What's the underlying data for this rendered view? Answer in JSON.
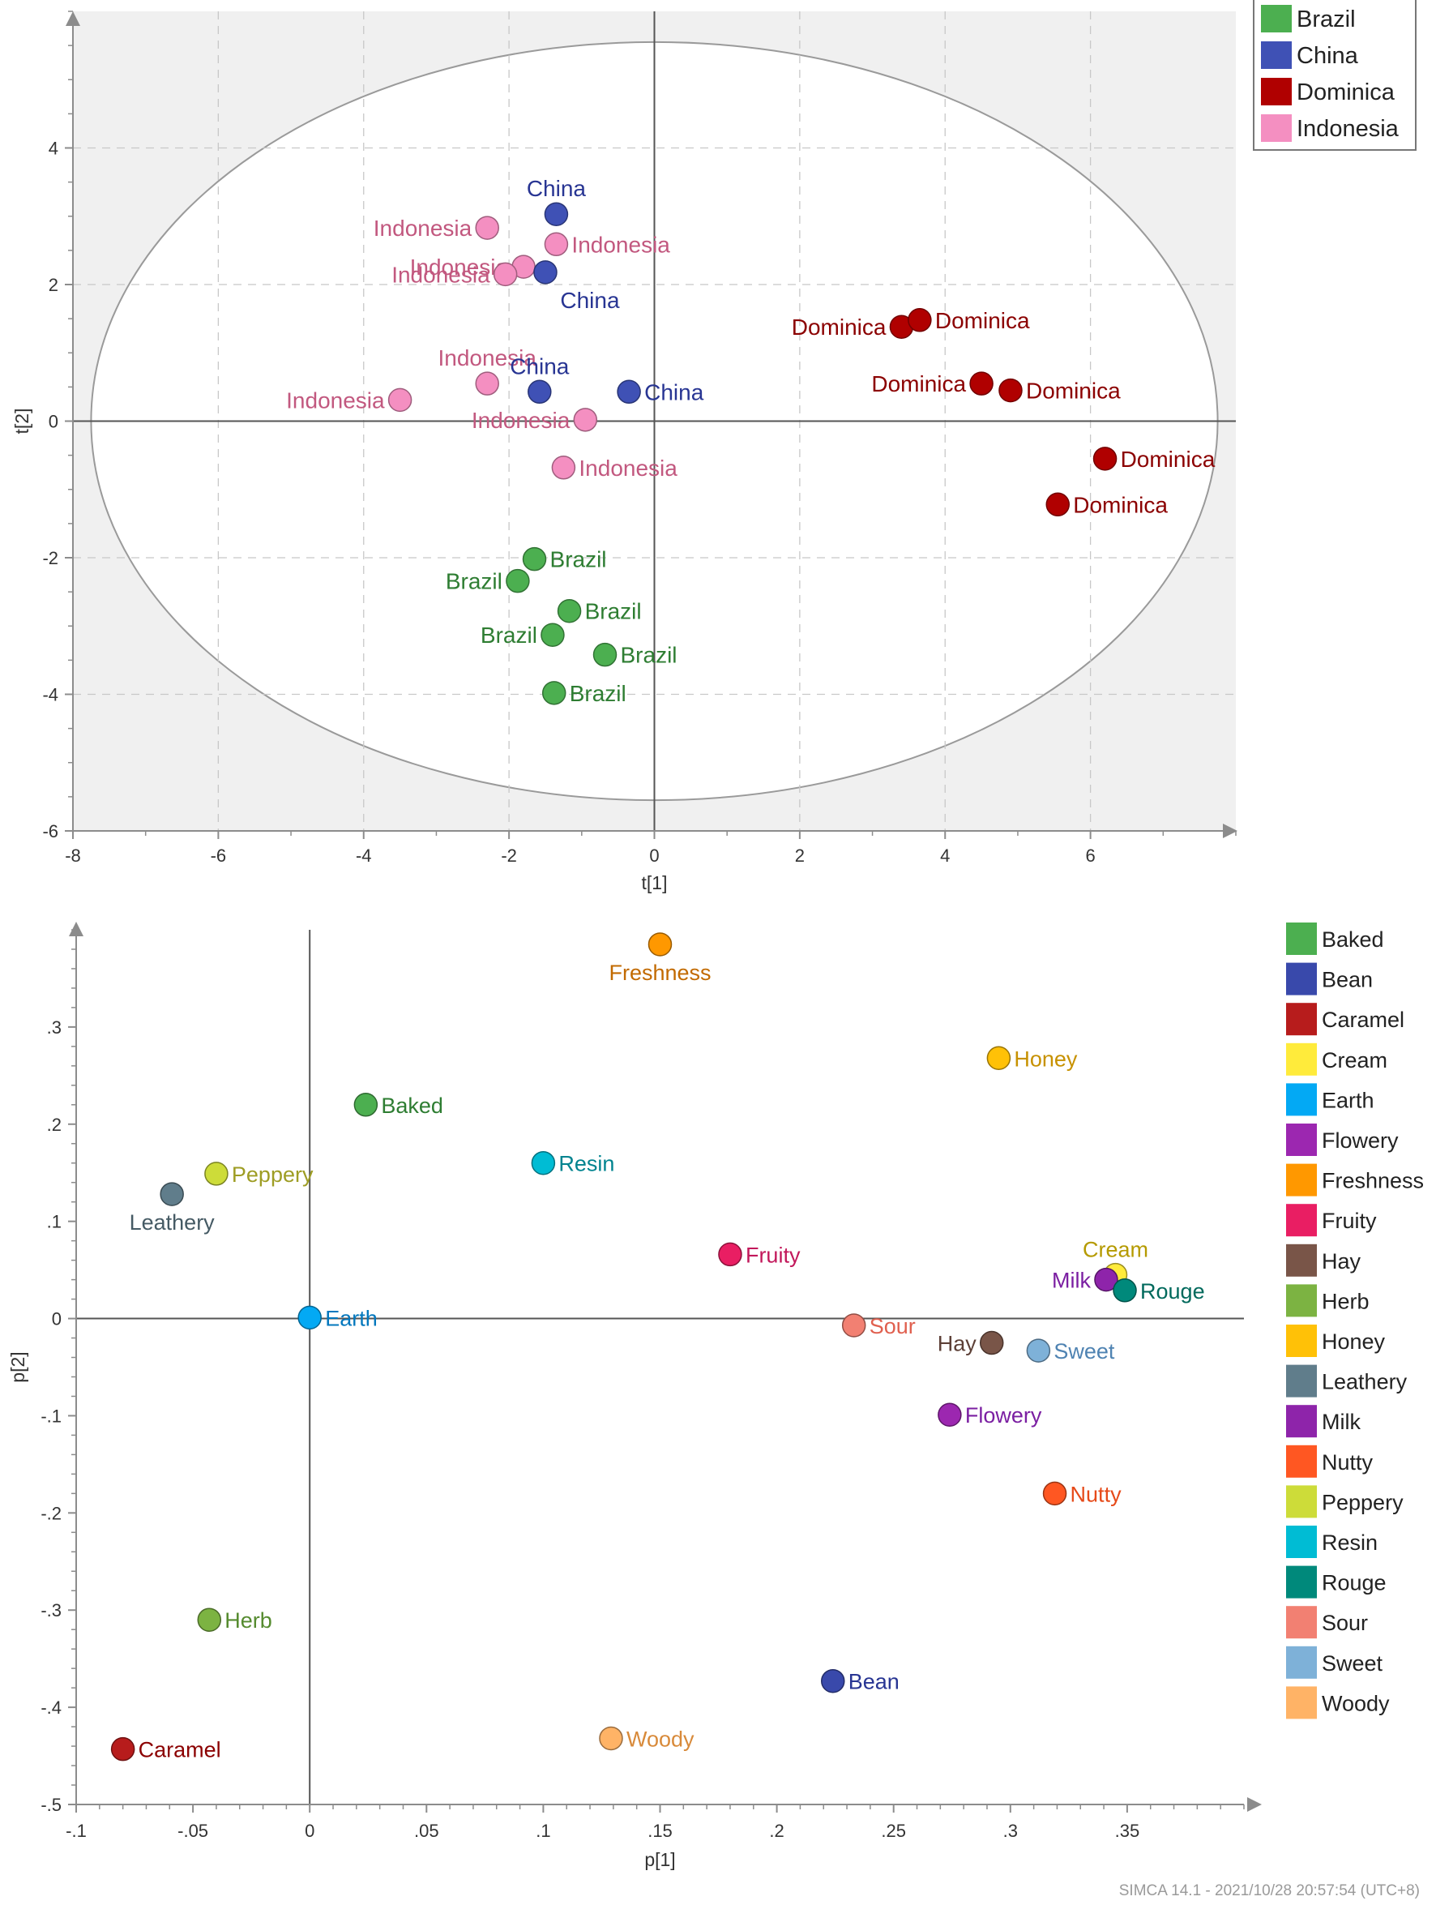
{
  "footer": "SIMCA 14.1 - 2021/10/28 20:57:54 (UTC+8)",
  "chart_data": [
    {
      "type": "scatter",
      "title": "",
      "xlabel": "t[1]",
      "ylabel": "t[2]",
      "xlim": [
        -8,
        8
      ],
      "ylim": [
        -6,
        6
      ],
      "xticks": [
        -8,
        -6,
        -4,
        -2,
        0,
        2,
        4,
        6
      ],
      "yticks": [
        -6,
        -4,
        -2,
        0,
        2,
        4
      ],
      "grid": true,
      "hotelling_ellipse": {
        "cx": 0,
        "cy": 0,
        "rx": 7.75,
        "ry": 5.55
      },
      "legend": [
        {
          "label": "Brazil",
          "color": "#4caf50"
        },
        {
          "label": "China",
          "color": "#3f51b5"
        },
        {
          "label": "Dominica",
          "color": "#b00000"
        },
        {
          "label": "Indonesia",
          "color": "#f48fc1"
        }
      ],
      "points": [
        {
          "label": "Indonesia",
          "group": "Indonesia",
          "x": -2.3,
          "y": 2.83,
          "anchor": "left"
        },
        {
          "label": "China",
          "group": "China",
          "x": -1.35,
          "y": 3.03,
          "anchor": "above"
        },
        {
          "label": "Indonesia",
          "group": "Indonesia",
          "x": -1.35,
          "y": 2.59,
          "anchor": "right"
        },
        {
          "label": "Indonesia",
          "group": "Indonesia",
          "x": -1.8,
          "y": 2.26,
          "anchor": "left"
        },
        {
          "label": "Indonesia",
          "group": "Indonesia",
          "x": -2.05,
          "y": 2.15,
          "anchor": "left"
        },
        {
          "label": "China",
          "group": "China",
          "x": -1.5,
          "y": 2.18,
          "anchor": "below"
        },
        {
          "label": "Indonesia",
          "group": "Indonesia",
          "x": -2.3,
          "y": 0.55,
          "anchor": "above"
        },
        {
          "label": "China",
          "group": "China",
          "x": -1.58,
          "y": 0.43,
          "anchor": "above"
        },
        {
          "label": "China",
          "group": "China",
          "x": -0.35,
          "y": 0.43,
          "anchor": "right"
        },
        {
          "label": "Indonesia",
          "group": "Indonesia",
          "x": -3.5,
          "y": 0.31,
          "anchor": "left"
        },
        {
          "label": "Indonesia",
          "group": "Indonesia",
          "x": -0.95,
          "y": 0.02,
          "anchor": "left"
        },
        {
          "label": "Indonesia",
          "group": "Indonesia",
          "x": -1.25,
          "y": -0.68,
          "anchor": "right"
        },
        {
          "label": "Dominica",
          "group": "Dominica",
          "x": 3.4,
          "y": 1.38,
          "anchor": "left"
        },
        {
          "label": "Dominica",
          "group": "Dominica",
          "x": 3.65,
          "y": 1.48,
          "anchor": "right"
        },
        {
          "label": "Dominica",
          "group": "Dominica",
          "x": 4.5,
          "y": 0.55,
          "anchor": "left"
        },
        {
          "label": "Dominica",
          "group": "Dominica",
          "x": 4.9,
          "y": 0.45,
          "anchor": "right"
        },
        {
          "label": "Dominica",
          "group": "Dominica",
          "x": 6.2,
          "y": -0.55,
          "anchor": "right"
        },
        {
          "label": "Dominica",
          "group": "Dominica",
          "x": 5.55,
          "y": -1.22,
          "anchor": "right"
        },
        {
          "label": "Brazil",
          "group": "Brazil",
          "x": -1.65,
          "y": -2.02,
          "anchor": "right"
        },
        {
          "label": "Brazil",
          "group": "Brazil",
          "x": -1.88,
          "y": -2.34,
          "anchor": "left"
        },
        {
          "label": "Brazil",
          "group": "Brazil",
          "x": -1.17,
          "y": -2.78,
          "anchor": "right"
        },
        {
          "label": "Brazil",
          "group": "Brazil",
          "x": -1.4,
          "y": -3.13,
          "anchor": "left"
        },
        {
          "label": "Brazil",
          "group": "Brazil",
          "x": -0.68,
          "y": -3.42,
          "anchor": "right"
        },
        {
          "label": "Brazil",
          "group": "Brazil",
          "x": -1.38,
          "y": -3.98,
          "anchor": "right"
        }
      ]
    },
    {
      "type": "scatter",
      "title": "",
      "xlabel": "p[1]",
      "ylabel": "p[2]",
      "xlim": [
        -0.1,
        0.4
      ],
      "ylim": [
        -0.5,
        0.4
      ],
      "xticks": [
        -0.1,
        -0.05,
        0,
        0.05,
        0.1,
        0.15,
        0.2,
        0.25,
        0.3,
        0.35
      ],
      "yticks": [
        -0.5,
        -0.4,
        -0.3,
        -0.2,
        -0.1,
        0,
        0.1,
        0.2,
        0.3
      ],
      "grid": false,
      "legend": [
        {
          "label": "Baked",
          "color": "#4caf50"
        },
        {
          "label": "Bean",
          "color": "#3949ab"
        },
        {
          "label": "Caramel",
          "color": "#b71c1c"
        },
        {
          "label": "Cream",
          "color": "#ffeb3b"
        },
        {
          "label": "Earth",
          "color": "#03a9f4"
        },
        {
          "label": "Flowery",
          "color": "#9c27b0"
        },
        {
          "label": "Freshness",
          "color": "#ff9800"
        },
        {
          "label": "Fruity",
          "color": "#e91e63"
        },
        {
          "label": "Hay",
          "color": "#795548"
        },
        {
          "label": "Herb",
          "color": "#7cb342"
        },
        {
          "label": "Honey",
          "color": "#ffc107"
        },
        {
          "label": "Leathery",
          "color": "#607d8b"
        },
        {
          "label": "Milk",
          "color": "#8e24aa"
        },
        {
          "label": "Nutty",
          "color": "#ff5722"
        },
        {
          "label": "Peppery",
          "color": "#cddc39"
        },
        {
          "label": "Resin",
          "color": "#00bcd4"
        },
        {
          "label": "Rouge",
          "color": "#00897b"
        },
        {
          "label": "Sour",
          "color": "#f28072"
        },
        {
          "label": "Sweet",
          "color": "#7eb1d8"
        },
        {
          "label": "Woody",
          "color": "#ffb366"
        }
      ],
      "points": [
        {
          "label": "Freshness",
          "x": 0.15,
          "y": 0.385,
          "anchor": "below"
        },
        {
          "label": "Honey",
          "x": 0.295,
          "y": 0.268,
          "anchor": "right"
        },
        {
          "label": "Baked",
          "x": 0.024,
          "y": 0.22,
          "anchor": "right"
        },
        {
          "label": "Resin",
          "x": 0.1,
          "y": 0.16,
          "anchor": "right"
        },
        {
          "label": "Peppery",
          "x": -0.04,
          "y": 0.149,
          "anchor": "right"
        },
        {
          "label": "Leathery",
          "x": -0.059,
          "y": 0.128,
          "anchor": "below"
        },
        {
          "label": "Fruity",
          "x": 0.18,
          "y": 0.066,
          "anchor": "right"
        },
        {
          "label": "Cream",
          "x": 0.345,
          "y": 0.045,
          "anchor": "above"
        },
        {
          "label": "Milk",
          "x": 0.341,
          "y": 0.04,
          "anchor": "left"
        },
        {
          "label": "Rouge",
          "x": 0.349,
          "y": 0.029,
          "anchor": "right"
        },
        {
          "label": "Earth",
          "x": 0.0,
          "y": 0.001,
          "anchor": "right"
        },
        {
          "label": "Sour",
          "x": 0.233,
          "y": -0.007,
          "anchor": "right"
        },
        {
          "label": "Hay",
          "x": 0.292,
          "y": -0.025,
          "anchor": "left"
        },
        {
          "label": "Sweet",
          "x": 0.312,
          "y": -0.033,
          "anchor": "right"
        },
        {
          "label": "Flowery",
          "x": 0.274,
          "y": -0.099,
          "anchor": "right"
        },
        {
          "label": "Nutty",
          "x": 0.319,
          "y": -0.18,
          "anchor": "right"
        },
        {
          "label": "Herb",
          "x": -0.043,
          "y": -0.31,
          "anchor": "right"
        },
        {
          "label": "Bean",
          "x": 0.224,
          "y": -0.373,
          "anchor": "right"
        },
        {
          "label": "Woody",
          "x": 0.129,
          "y": -0.432,
          "anchor": "right"
        },
        {
          "label": "Caramel",
          "x": -0.08,
          "y": -0.443,
          "anchor": "right"
        }
      ]
    }
  ]
}
